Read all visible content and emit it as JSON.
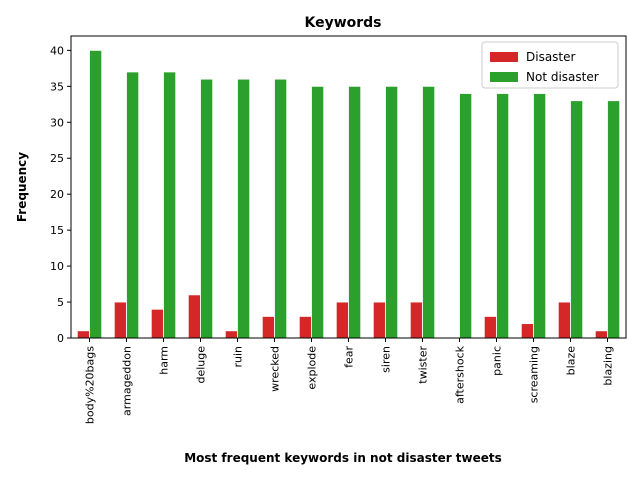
{
  "chart_data": {
    "type": "bar",
    "title": "Keywords",
    "xlabel": "Most frequent keywords in not disaster tweets",
    "ylabel": "Frequency",
    "ylim": [
      0,
      42
    ],
    "yticks": [
      0,
      5,
      10,
      15,
      20,
      25,
      30,
      35,
      40
    ],
    "grid": false,
    "legend_position": "top-right",
    "categories": [
      "body%20bags",
      "armageddon",
      "harm",
      "deluge",
      "ruin",
      "wrecked",
      "explode",
      "fear",
      "siren",
      "twister",
      "aftershock",
      "panic",
      "screaming",
      "blaze",
      "blazing"
    ],
    "series": [
      {
        "name": "Disaster",
        "color": "#d62728",
        "values": [
          1,
          5,
          4,
          6,
          1,
          3,
          3,
          5,
          5,
          5,
          0,
          3,
          2,
          5,
          1
        ]
      },
      {
        "name": "Not disaster",
        "color": "#2ca02c",
        "values": [
          40,
          37,
          37,
          36,
          36,
          36,
          35,
          35,
          35,
          35,
          34,
          34,
          34,
          33,
          33
        ]
      }
    ]
  }
}
